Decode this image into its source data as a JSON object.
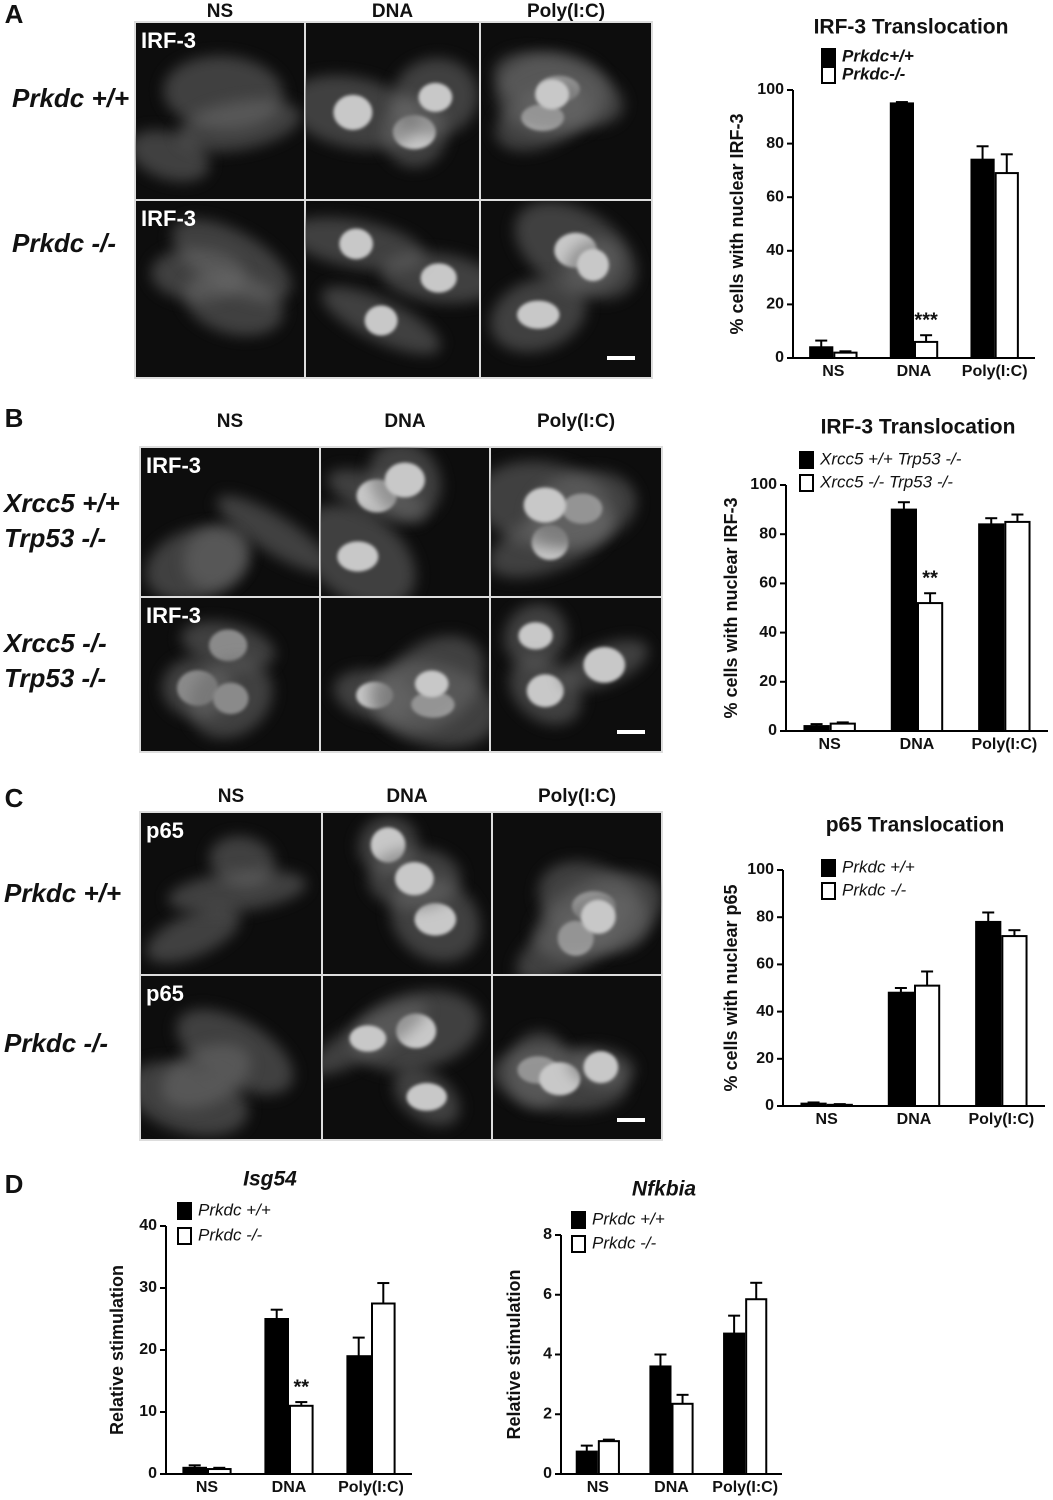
{
  "panel_letters": [
    "A",
    "B",
    "C",
    "D"
  ],
  "image_panels": [
    {
      "columns": [
        "NS",
        "DNA",
        "Poly(I:C)"
      ],
      "rows": [
        [
          "Prkdc +/+"
        ],
        [
          "Prkdc -/-"
        ]
      ],
      "stain": "IRF-3"
    },
    {
      "columns": [
        "NS",
        "DNA",
        "Poly(I:C)"
      ],
      "rows": [
        [
          "Xrcc5 +/+",
          "Trp53 -/-"
        ],
        [
          "Xrcc5 -/-",
          "Trp53 -/-"
        ]
      ],
      "stain": "IRF-3"
    },
    {
      "columns": [
        "NS",
        "DNA",
        "Poly(I:C)"
      ],
      "rows": [
        [
          "Prkdc +/+"
        ],
        [
          "Prkdc -/-"
        ]
      ],
      "stain": "p65"
    }
  ],
  "chart_data": [
    {
      "type": "bar",
      "title": "IRF-3 Translocation",
      "y_label": "% cells with nuclear IRF-3",
      "categories": [
        "NS",
        "DNA",
        "Poly(I:C)"
      ],
      "series": [
        {
          "name": "Prkdc+/+",
          "color": "#000000",
          "values": [
            4,
            95,
            74
          ],
          "errors": [
            2.5,
            0.5,
            5
          ]
        },
        {
          "name": "Prkdc-/-",
          "color": "#ffffff",
          "values": [
            2,
            6,
            69
          ],
          "errors": [
            0.5,
            2.5,
            7
          ],
          "annotations": [
            null,
            "***",
            null
          ]
        }
      ],
      "ylim": [
        0,
        100
      ],
      "yticks": [
        0,
        20,
        40,
        60,
        80,
        100
      ]
    },
    {
      "type": "bar",
      "title": "IRF-3 Translocation",
      "y_label": "% cells with nuclear IRF-3",
      "categories": [
        "NS",
        "DNA",
        "Poly(I:C)"
      ],
      "series": [
        {
          "name": "Xrcc5 +/+ Trp53 -/-",
          "color": "#000000",
          "values": [
            2,
            90,
            84
          ],
          "errors": [
            0.8,
            3,
            2.5
          ]
        },
        {
          "name": "Xrcc5 -/- Trp53 -/-",
          "color": "#ffffff",
          "values": [
            3,
            52,
            85
          ],
          "errors": [
            0.5,
            4,
            3
          ],
          "annotations": [
            null,
            "**",
            null
          ]
        }
      ],
      "ylim": [
        0,
        100
      ],
      "yticks": [
        0,
        20,
        40,
        60,
        80,
        100
      ]
    },
    {
      "type": "bar",
      "title": "p65 Translocation",
      "y_label": "% cells with nuclear p65",
      "categories": [
        "NS",
        "DNA",
        "Poly(I:C)"
      ],
      "series": [
        {
          "name": "Prkdc +/+",
          "color": "#000000",
          "values": [
            1,
            48,
            78
          ],
          "errors": [
            0.5,
            2,
            4
          ]
        },
        {
          "name": "Prkdc -/-",
          "color": "#ffffff",
          "values": [
            0.5,
            51,
            72
          ],
          "errors": [
            0.3,
            6,
            2.5
          ]
        }
      ],
      "ylim": [
        0,
        100
      ],
      "yticks": [
        0,
        20,
        40,
        60,
        80,
        100
      ]
    },
    {
      "type": "bar",
      "title": "Isg54",
      "y_label": "Relative stimulation",
      "categories": [
        "NS",
        "DNA",
        "Poly(I:C)"
      ],
      "series": [
        {
          "name": "Prkdc +/+",
          "color": "#000000",
          "values": [
            1,
            25,
            19
          ],
          "errors": [
            0.4,
            1.5,
            3
          ]
        },
        {
          "name": "Prkdc -/-",
          "color": "#ffffff",
          "values": [
            0.8,
            11,
            27.5
          ],
          "errors": [
            0.2,
            0.6,
            3.3
          ],
          "annotations": [
            null,
            "**",
            null
          ]
        }
      ],
      "ylim": [
        0,
        40
      ],
      "yticks": [
        0,
        10,
        20,
        30,
        40
      ]
    },
    {
      "type": "bar",
      "title": "Nfkbia",
      "y_label": "Relative stimulation",
      "categories": [
        "NS",
        "DNA",
        "Poly(I:C)"
      ],
      "series": [
        {
          "name": "Prkdc +/+",
          "color": "#000000",
          "values": [
            0.75,
            3.6,
            4.7
          ],
          "errors": [
            0.2,
            0.4,
            0.6
          ]
        },
        {
          "name": "Prkdc -/-",
          "color": "#ffffff",
          "values": [
            1.1,
            2.35,
            5.85
          ],
          "errors": [
            0.05,
            0.3,
            0.55
          ]
        }
      ],
      "ylim": [
        0,
        8
      ],
      "yticks": [
        0,
        2,
        4,
        6,
        8
      ]
    }
  ]
}
